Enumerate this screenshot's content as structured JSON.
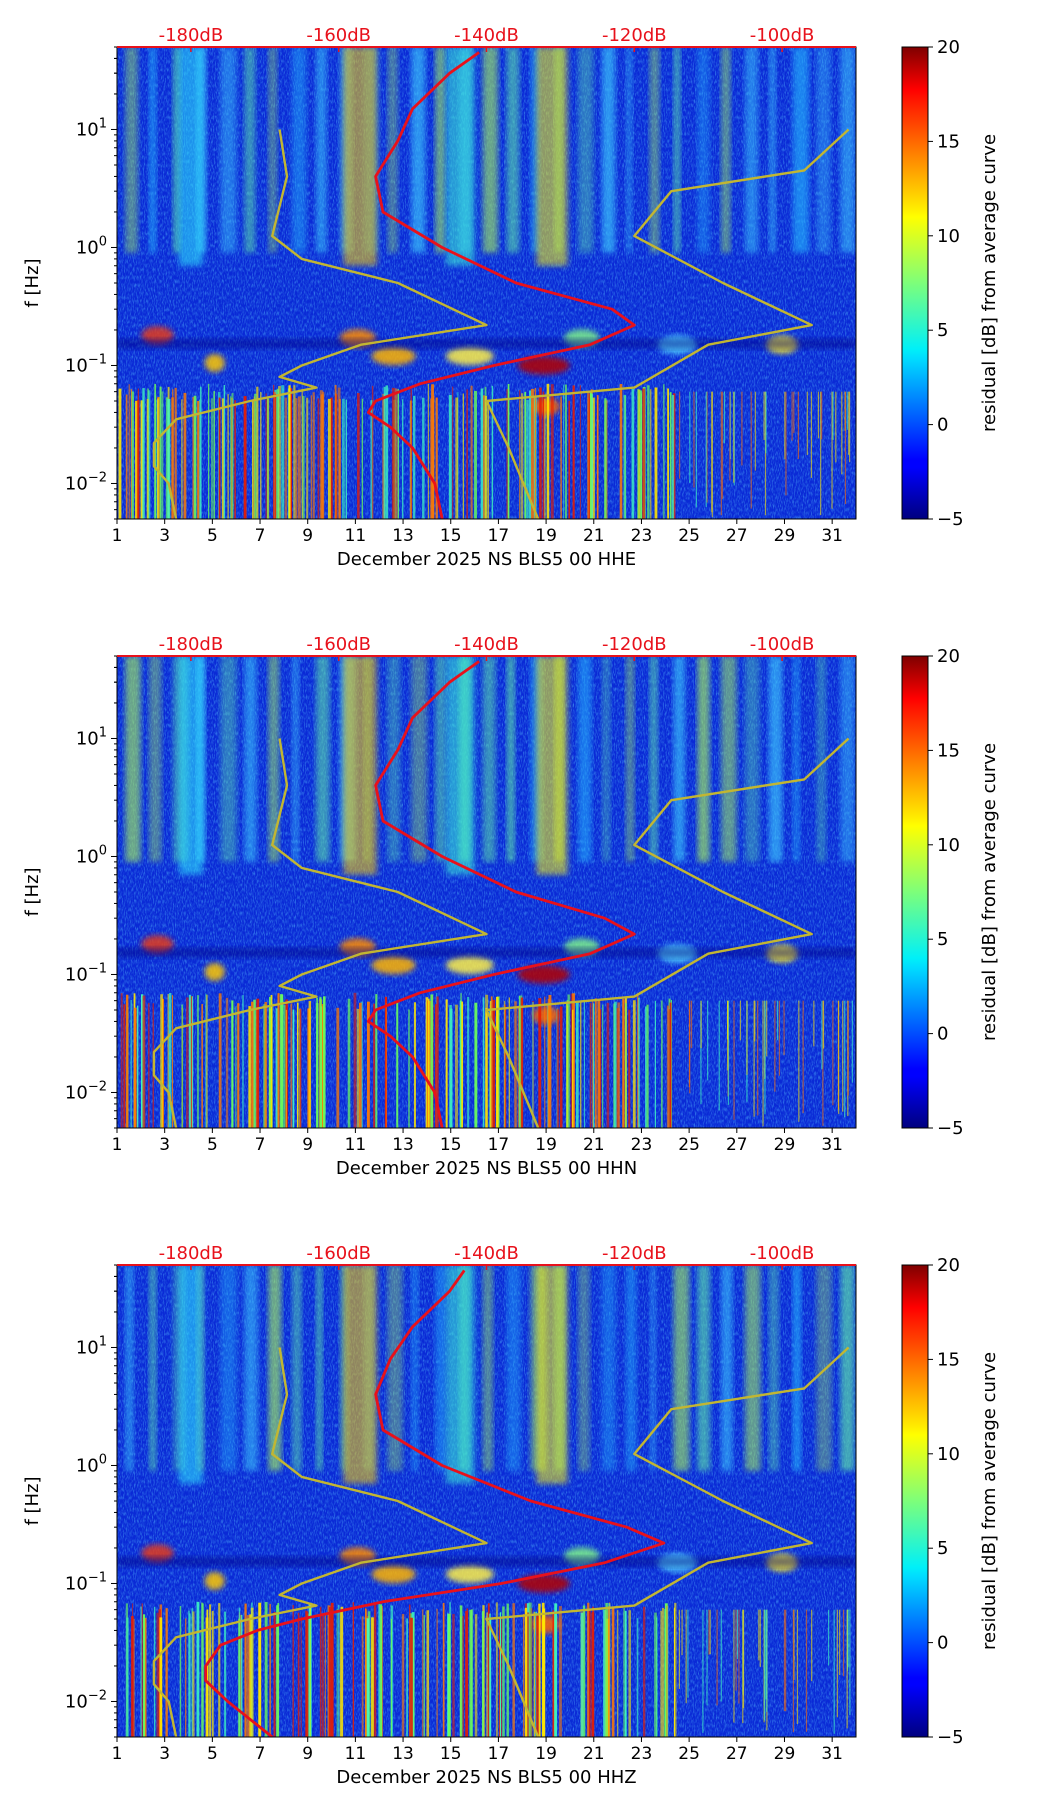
{
  "chart_data": [
    {
      "type": "heatmap",
      "title": "",
      "xlabel": "December 2025 NS BLS5 00 HHE",
      "ylabel": "f [Hz]",
      "x_ticks": [
        "1",
        "3",
        "5",
        "7",
        "9",
        "11",
        "13",
        "15",
        "17",
        "19",
        "21",
        "23",
        "25",
        "27",
        "29",
        "31"
      ],
      "x_range": [
        1,
        32
      ],
      "y_scale": "log",
      "y_range": [
        0.005,
        50
      ],
      "y_ticks": [
        "10^-2",
        "10^-1",
        "10^0",
        "10^1"
      ],
      "top_axis_ticks": [
        "-180dB",
        "-160dB",
        "-140dB",
        "-120dB",
        "-100dB"
      ],
      "top_axis_range_db": [
        -190,
        -90
      ],
      "colorbar": {
        "label": "residual [dB] from average curve",
        "min": -5,
        "max": 20,
        "ticks": [
          "20",
          "15",
          "10",
          "5",
          "0",
          "−5"
        ]
      },
      "series": [
        {
          "name": "average PSD",
          "color": "#e8111b",
          "points": [
            [
              45,
              -141
            ],
            [
              30,
              -145
            ],
            [
              15,
              -150
            ],
            [
              8,
              -152
            ],
            [
              4,
              -155
            ],
            [
              2,
              -154
            ],
            [
              1,
              -146
            ],
            [
              0.5,
              -136
            ],
            [
              0.3,
              -123
            ],
            [
              0.22,
              -120
            ],
            [
              0.15,
              -126
            ],
            [
              0.1,
              -139
            ],
            [
              0.07,
              -149
            ],
            [
              0.05,
              -155
            ],
            [
              0.04,
              -156
            ],
            [
              0.03,
              -153
            ],
            [
              0.02,
              -150
            ],
            [
              0.01,
              -147
            ],
            [
              0.005,
              -146
            ]
          ]
        },
        {
          "name": "NLNM",
          "color": "#c2b632",
          "points": [
            [
              10,
              -168
            ],
            [
              4,
              -167
            ],
            [
              1.25,
              -169
            ],
            [
              0.8,
              -165
            ],
            [
              0.5,
              -152
            ],
            [
              0.22,
              -140
            ],
            [
              0.15,
              -157
            ],
            [
              0.1,
              -165
            ],
            [
              0.08,
              -168
            ],
            [
              0.065,
              -163
            ],
            [
              0.05,
              -172
            ],
            [
              0.035,
              -182
            ],
            [
              0.022,
              -185
            ],
            [
              0.014,
              -185
            ],
            [
              0.01,
              -183
            ],
            [
              0.005,
              -182
            ]
          ]
        },
        {
          "name": "NHNM",
          "color": "#c2b632",
          "points": [
            [
              10,
              -91
            ],
            [
              4.5,
              -97
            ],
            [
              3,
              -115
            ],
            [
              1.25,
              -120
            ],
            [
              0.5,
              -108
            ],
            [
              0.22,
              -96
            ],
            [
              0.15,
              -110
            ],
            [
              0.065,
              -120
            ],
            [
              0.05,
              -140
            ],
            [
              0.02,
              -137
            ],
            [
              0.005,
              -133
            ]
          ]
        }
      ]
    },
    {
      "type": "heatmap",
      "title": "",
      "xlabel": "December 2025 NS BLS5 00 HHN",
      "ylabel": "f [Hz]",
      "x_ticks": [
        "1",
        "3",
        "5",
        "7",
        "9",
        "11",
        "13",
        "15",
        "17",
        "19",
        "21",
        "23",
        "25",
        "27",
        "29",
        "31"
      ],
      "x_range": [
        1,
        32
      ],
      "y_scale": "log",
      "y_range": [
        0.005,
        50
      ],
      "y_ticks": [
        "10^-2",
        "10^-1",
        "10^0",
        "10^1"
      ],
      "top_axis_ticks": [
        "-180dB",
        "-160dB",
        "-140dB",
        "-120dB",
        "-100dB"
      ],
      "top_axis_range_db": [
        -190,
        -90
      ],
      "colorbar": {
        "label": "residual [dB] from average curve",
        "min": -5,
        "max": 20,
        "ticks": [
          "20",
          "15",
          "10",
          "5",
          "0",
          "−5"
        ]
      },
      "series": [
        {
          "name": "average PSD",
          "color": "#e8111b",
          "points": [
            [
              45,
              -141
            ],
            [
              30,
              -145
            ],
            [
              15,
              -150
            ],
            [
              8,
              -152
            ],
            [
              4,
              -155
            ],
            [
              2,
              -154
            ],
            [
              1,
              -146
            ],
            [
              0.5,
              -136
            ],
            [
              0.3,
              -124
            ],
            [
              0.22,
              -120
            ],
            [
              0.15,
              -126
            ],
            [
              0.1,
              -139
            ],
            [
              0.07,
              -149
            ],
            [
              0.05,
              -155
            ],
            [
              0.04,
              -156
            ],
            [
              0.03,
              -153
            ],
            [
              0.02,
              -150
            ],
            [
              0.01,
              -147
            ],
            [
              0.005,
              -146
            ]
          ]
        },
        {
          "name": "NLNM",
          "color": "#c2b632",
          "points": [
            [
              10,
              -168
            ],
            [
              4,
              -167
            ],
            [
              1.25,
              -169
            ],
            [
              0.8,
              -165
            ],
            [
              0.5,
              -152
            ],
            [
              0.22,
              -140
            ],
            [
              0.15,
              -157
            ],
            [
              0.1,
              -165
            ],
            [
              0.08,
              -168
            ],
            [
              0.065,
              -163
            ],
            [
              0.05,
              -172
            ],
            [
              0.035,
              -182
            ],
            [
              0.022,
              -185
            ],
            [
              0.014,
              -185
            ],
            [
              0.01,
              -183
            ],
            [
              0.005,
              -182
            ]
          ]
        },
        {
          "name": "NHNM",
          "color": "#c2b632",
          "points": [
            [
              10,
              -91
            ],
            [
              4.5,
              -97
            ],
            [
              3,
              -115
            ],
            [
              1.25,
              -120
            ],
            [
              0.5,
              -108
            ],
            [
              0.22,
              -96
            ],
            [
              0.15,
              -110
            ],
            [
              0.065,
              -120
            ],
            [
              0.05,
              -140
            ],
            [
              0.02,
              -137
            ],
            [
              0.005,
              -133
            ]
          ]
        }
      ]
    },
    {
      "type": "heatmap",
      "title": "",
      "xlabel": "December 2025 NS BLS5 00 HHZ",
      "ylabel": "f [Hz]",
      "x_ticks": [
        "1",
        "3",
        "5",
        "7",
        "9",
        "11",
        "13",
        "15",
        "17",
        "19",
        "21",
        "23",
        "25",
        "27",
        "29",
        "31"
      ],
      "x_range": [
        1,
        32
      ],
      "y_scale": "log",
      "y_range": [
        0.005,
        50
      ],
      "y_ticks": [
        "10^-2",
        "10^-1",
        "10^0",
        "10^1"
      ],
      "top_axis_ticks": [
        "-180dB",
        "-160dB",
        "-140dB",
        "-120dB",
        "-100dB"
      ],
      "top_axis_range_db": [
        -190,
        -90
      ],
      "colorbar": {
        "label": "residual [dB] from average curve",
        "min": -5,
        "max": 20,
        "ticks": [
          "20",
          "15",
          "10",
          "5",
          "0",
          "−5"
        ]
      },
      "series": [
        {
          "name": "average PSD",
          "color": "#e8111b",
          "points": [
            [
              45,
              -143
            ],
            [
              30,
              -145
            ],
            [
              15,
              -150
            ],
            [
              8,
              -153
            ],
            [
              4,
              -155
            ],
            [
              2,
              -154
            ],
            [
              1,
              -146
            ],
            [
              0.5,
              -134
            ],
            [
              0.3,
              -121
            ],
            [
              0.22,
              -116
            ],
            [
              0.15,
              -124
            ],
            [
              0.1,
              -138
            ],
            [
              0.07,
              -154
            ],
            [
              0.05,
              -165
            ],
            [
              0.04,
              -171
            ],
            [
              0.03,
              -176
            ],
            [
              0.02,
              -178
            ],
            [
              0.015,
              -178
            ],
            [
              0.01,
              -175
            ],
            [
              0.005,
              -169
            ]
          ]
        },
        {
          "name": "NLNM",
          "color": "#c2b632",
          "points": [
            [
              10,
              -168
            ],
            [
              4,
              -167
            ],
            [
              1.25,
              -169
            ],
            [
              0.8,
              -165
            ],
            [
              0.5,
              -152
            ],
            [
              0.22,
              -140
            ],
            [
              0.15,
              -157
            ],
            [
              0.1,
              -165
            ],
            [
              0.08,
              -168
            ],
            [
              0.065,
              -163
            ],
            [
              0.05,
              -172
            ],
            [
              0.035,
              -182
            ],
            [
              0.022,
              -185
            ],
            [
              0.014,
              -185
            ],
            [
              0.01,
              -183
            ],
            [
              0.005,
              -182
            ]
          ]
        },
        {
          "name": "NHNM",
          "color": "#c2b632",
          "points": [
            [
              10,
              -91
            ],
            [
              4.5,
              -97
            ],
            [
              3,
              -115
            ],
            [
              1.25,
              -120
            ],
            [
              0.5,
              -108
            ],
            [
              0.22,
              -96
            ],
            [
              0.15,
              -110
            ],
            [
              0.065,
              -120
            ],
            [
              0.05,
              -140
            ],
            [
              0.02,
              -137
            ],
            [
              0.005,
              -133
            ]
          ]
        }
      ]
    }
  ]
}
